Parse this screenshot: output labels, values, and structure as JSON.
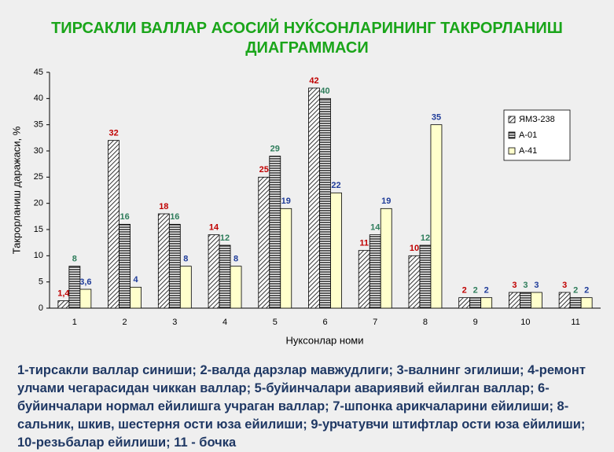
{
  "chart_data": {
    "type": "bar",
    "title": "ТИРСАКЛИ ВАЛЛАР АСОСИЙ НУЌСОНЛАРИНИНГ ТАКРОРЛАНИШ ДИАГРАММАСИ",
    "x_label": "Нуксонлар номи",
    "y_label": "Такрорланиш даражаси, %",
    "categories": [
      "1",
      "2",
      "3",
      "4",
      "5",
      "6",
      "7",
      "8",
      "9",
      "10",
      "11"
    ],
    "series": [
      {
        "name": "ЯМЗ-238",
        "color": "#333333",
        "pattern": "diagonal",
        "label_color": "#c00000",
        "values": [
          1.4,
          32,
          18,
          14,
          25,
          42,
          11,
          10,
          2,
          3,
          3
        ],
        "value_labels": [
          "1,4",
          "32",
          "18",
          "14",
          "25",
          "42",
          "11",
          "10",
          "2",
          "3",
          "3"
        ]
      },
      {
        "name": "А-01",
        "color": "#333333",
        "pattern": "horizontal",
        "label_color": "#2e7d5b",
        "values": [
          8,
          16,
          16,
          12,
          29,
          40,
          14,
          12,
          2,
          3,
          2
        ],
        "value_labels": [
          "8",
          "16",
          "16",
          "12",
          "29",
          "40",
          "14",
          "12",
          "2",
          "3",
          "2"
        ]
      },
      {
        "name": "А-41",
        "color": "#ffffcc",
        "pattern": "solid",
        "label_color": "#1f3c99",
        "values": [
          3.6,
          4,
          8,
          8,
          19,
          22,
          19,
          35,
          2,
          3,
          2
        ],
        "value_labels": [
          "3,6",
          "4",
          "8",
          "8",
          "19",
          "22",
          "19",
          "35",
          "2",
          "3",
          "2"
        ]
      }
    ],
    "ylim": [
      0,
      45
    ],
    "yticks": [
      0,
      5,
      10,
      15,
      20,
      25,
      30,
      35,
      40,
      45
    ],
    "grid": false,
    "legend": "upper right"
  },
  "caption": "1-тирсакли валлар синиши; 2-валда дарзлар мавжудлиги; 3-валнинг  эгилиши; 4-ремонт улчами чегарасидан чиккан валлар; 5-буйинчалари авариявий ейилган валлар; 6-буйинчалари нормал ейилишга учраган валлар; 7-шпонка арикчаларини ейилиши; 8-сальник, шкив, шестерня ости юза ейилиши; 9-урчатувчи штифтлар ости юза ейилиши; 10-резьбалар ейилиши; 11 - бочка"
}
